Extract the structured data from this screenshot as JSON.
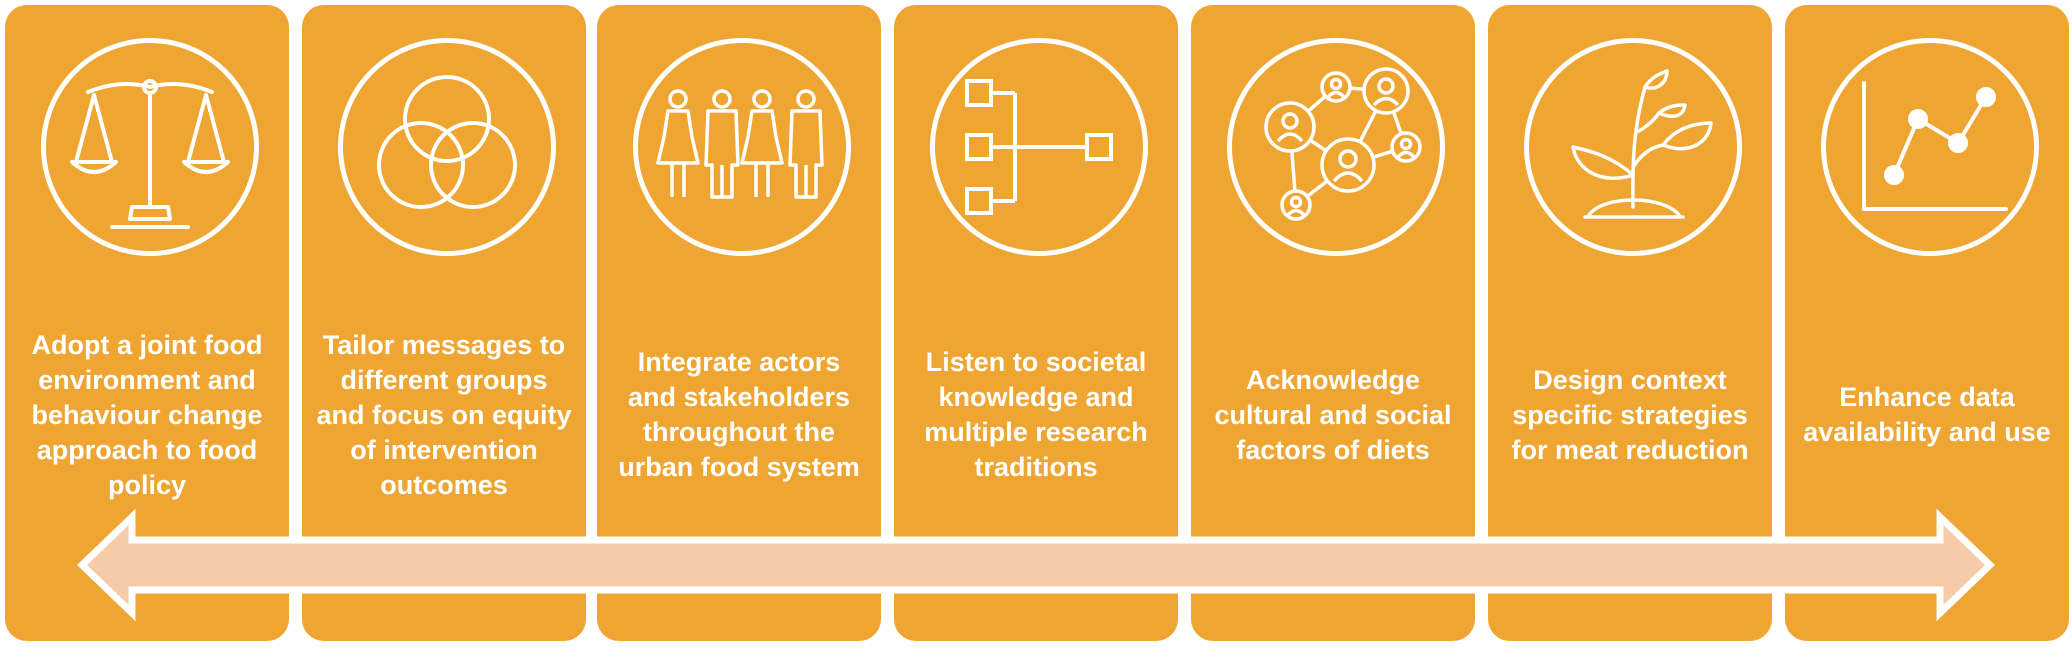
{
  "colors": {
    "card_fill": "#EFA531",
    "arrow_fill": "#F6CBA8",
    "icon_stroke": "#FFFFFF",
    "text": "#FFFFFF"
  },
  "steps": [
    {
      "icon": "scales-of-justice-icon",
      "label": "Adopt a joint food environment and behaviour change approach to food policy"
    },
    {
      "icon": "overlapping-circles-icon",
      "label": "Tailor messages to different groups and  focus on equity of intervention outcomes"
    },
    {
      "icon": "group-of-people-icon",
      "label": "Integrate actors and stakeholders throughout the urban food system"
    },
    {
      "icon": "flow-branches-icon",
      "label": "Listen to societal knowledge and multiple research traditions"
    },
    {
      "icon": "network-of-people-icon",
      "label": "Acknowledge cultural and social factors of diets"
    },
    {
      "icon": "sprouting-plant-icon",
      "label": "Design context specific strategies for meat reduction"
    },
    {
      "icon": "line-chart-icon",
      "label": "Enhance data availability and use"
    }
  ]
}
